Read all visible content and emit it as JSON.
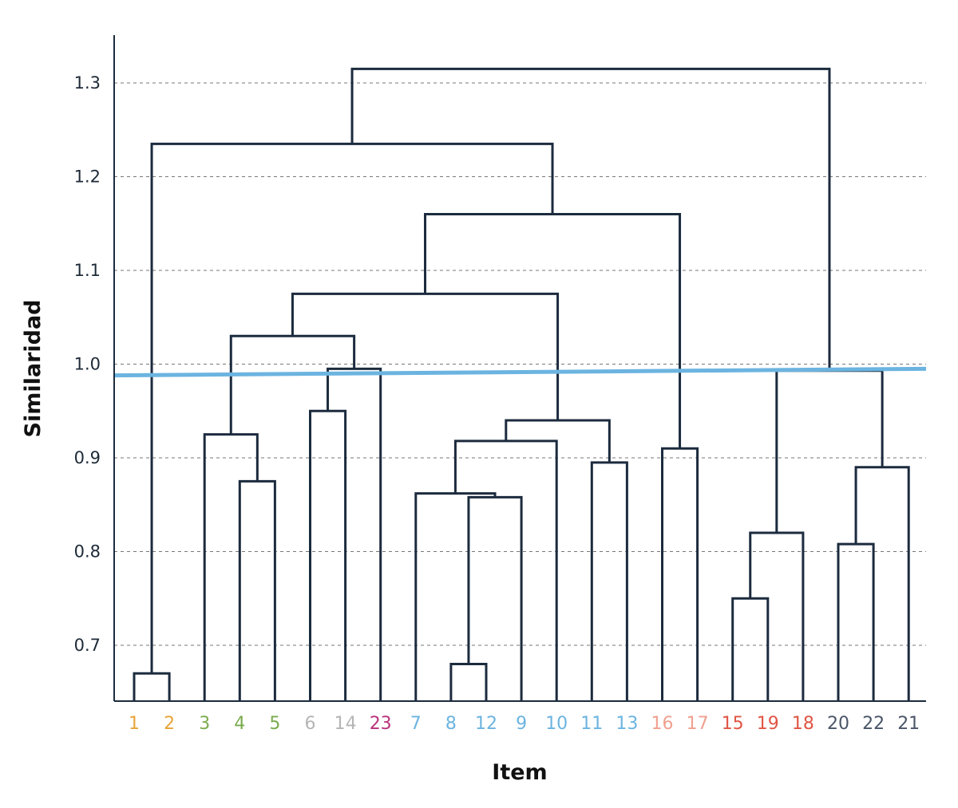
{
  "chart_data": {
    "type": "dendrogram",
    "xlabel": "Item",
    "ylabel": "Similaridad",
    "ylim": [
      0.64,
      1.35
    ],
    "y_ticks": [
      0.7,
      0.8,
      0.9,
      1.0,
      1.1,
      1.2,
      1.3
    ],
    "y_tick_labels": [
      "0.7",
      "0.8",
      "0.9",
      "1.0",
      "1.1",
      "1.2",
      "1.3"
    ],
    "grid": "horizontal dashed",
    "leaves": [
      {
        "label": "1",
        "color": "#e8a43a"
      },
      {
        "label": "2",
        "color": "#e8a43a"
      },
      {
        "label": "3",
        "color": "#7aab4d"
      },
      {
        "label": "4",
        "color": "#7aab4d"
      },
      {
        "label": "5",
        "color": "#7aab4d"
      },
      {
        "label": "6",
        "color": "#b5b5b5"
      },
      {
        "label": "14",
        "color": "#b5b5b5"
      },
      {
        "label": "23",
        "color": "#b8337c"
      },
      {
        "label": "7",
        "color": "#6cb4e0"
      },
      {
        "label": "8",
        "color": "#6cb4e0"
      },
      {
        "label": "12",
        "color": "#6cb4e0"
      },
      {
        "label": "9",
        "color": "#6cb4e0"
      },
      {
        "label": "10",
        "color": "#6cb4e0"
      },
      {
        "label": "11",
        "color": "#6cb4e0"
      },
      {
        "label": "13",
        "color": "#6cb4e0"
      },
      {
        "label": "16",
        "color": "#f0a090"
      },
      {
        "label": "17",
        "color": "#f0a090"
      },
      {
        "label": "15",
        "color": "#e05545"
      },
      {
        "label": "19",
        "color": "#e05545"
      },
      {
        "label": "18",
        "color": "#e05545"
      },
      {
        "label": "20",
        "color": "#4a5568"
      },
      {
        "label": "22",
        "color": "#4a5568"
      },
      {
        "label": "21",
        "color": "#4a5568"
      }
    ],
    "merges": [
      {
        "left": "1",
        "right": "2",
        "height": 0.67
      },
      {
        "left": "4",
        "right": "5",
        "height": 0.875
      },
      {
        "left": "3",
        "right": "4+5",
        "height": 0.925
      },
      {
        "left": "6",
        "right": "14",
        "height": 0.95
      },
      {
        "left": "6+14",
        "right": "23",
        "height": 0.995
      },
      {
        "left": "3+4+5",
        "right": "6+14+23",
        "height": 1.03
      },
      {
        "left": "8",
        "right": "12",
        "height": 0.68
      },
      {
        "left": "8+12",
        "right": "9",
        "height": 0.858
      },
      {
        "left": "7",
        "right": "8+12+9",
        "height": 0.862
      },
      {
        "left": "7+8+12+9",
        "right": "10",
        "height": 0.918
      },
      {
        "left": "11",
        "right": "13",
        "height": 0.895
      },
      {
        "left": "7+8+12+9+10",
        "right": "11+13",
        "height": 0.94
      },
      {
        "left": "3..23",
        "right": "7..13",
        "height": 1.075
      },
      {
        "left": "16",
        "right": "17",
        "height": 0.91
      },
      {
        "left": "3..13",
        "right": "16+17",
        "height": 1.16
      },
      {
        "left": "1+2",
        "right": "3..17",
        "height": 1.235
      },
      {
        "left": "15",
        "right": "19",
        "height": 0.75
      },
      {
        "left": "15+19",
        "right": "18",
        "height": 0.82
      },
      {
        "left": "20",
        "right": "22",
        "height": 0.808
      },
      {
        "left": "20+22",
        "right": "21",
        "height": 0.89
      },
      {
        "left": "15+19+18",
        "right": "20+22+21",
        "height": 0.993
      },
      {
        "left": "1..17",
        "right": "15..21",
        "height": 1.315
      }
    ],
    "cut_line": {
      "from": 0.988,
      "to": 0.995,
      "color": "#6cb4e0"
    },
    "line_color": "#1c2b3e"
  }
}
